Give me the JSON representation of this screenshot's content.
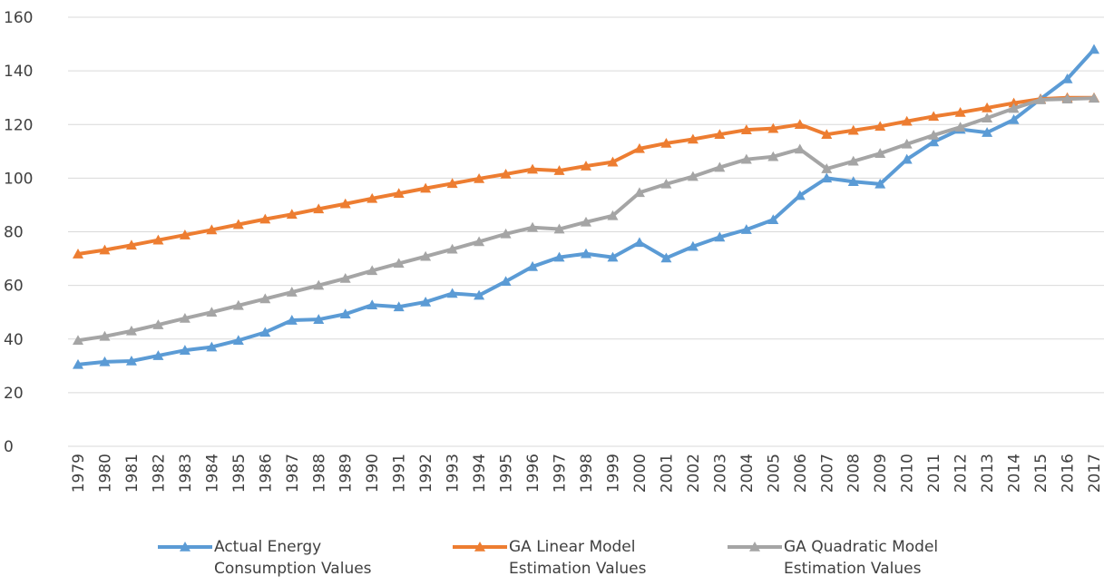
{
  "chart_data": {
    "type": "line",
    "categories": [
      "1979",
      "1980",
      "1981",
      "1982",
      "1983",
      "1984",
      "1985",
      "1986",
      "1987",
      "1988",
      "1989",
      "1990",
      "1991",
      "1992",
      "1993",
      "1994",
      "1995",
      "1996",
      "1997",
      "1998",
      "1999",
      "2000",
      "2001",
      "2002",
      "2003",
      "2004",
      "2005",
      "2006",
      "2007",
      "2008",
      "2009",
      "2010",
      "2011",
      "2012",
      "2013",
      "2014",
      "2015",
      "2016",
      "2017"
    ],
    "series": [
      {
        "name": "Actual Energy Consumption Values",
        "color": "#5b9bd5",
        "values": [
          30.5,
          31.5,
          31.8,
          33.8,
          35.8,
          37,
          39.5,
          42.5,
          47,
          47.3,
          49.3,
          52.7,
          52,
          53.8,
          57,
          56.3,
          61.5,
          67,
          70.5,
          71.8,
          70.5,
          76,
          70.2,
          74.5,
          78,
          80.8,
          84.5,
          93.5,
          100,
          98.7,
          97.8,
          107,
          113.5,
          118.2,
          117,
          121.8,
          129.5,
          137,
          148
        ]
      },
      {
        "name": "GA Linear Model Estimation Values",
        "color": "#ed7d31",
        "values": [
          71.7,
          73.2,
          75,
          76.9,
          78.8,
          80.7,
          82.7,
          84.7,
          86.5,
          88.5,
          90.4,
          92.4,
          94.3,
          96.2,
          98,
          99.8,
          101.5,
          103.3,
          102.8,
          104.5,
          106,
          111,
          113,
          114.5,
          116.3,
          118,
          118.5,
          120,
          116.3,
          117.8,
          119.3,
          121.2,
          123,
          124.5,
          126.2,
          128,
          129.5,
          130,
          130
        ]
      },
      {
        "name": "GA Quadratic Model Estimation Values",
        "color": "#a5a5a5",
        "values": [
          39.5,
          41,
          43,
          45.3,
          47.7,
          50,
          52.5,
          55,
          57.5,
          60,
          62.6,
          65.5,
          68.2,
          70.8,
          73.5,
          76.3,
          79.2,
          81.6,
          81,
          83.6,
          86,
          94.6,
          97.8,
          100.6,
          104,
          107,
          108,
          110.8,
          103.5,
          106.3,
          109.2,
          112.7,
          116,
          119,
          122.4,
          126,
          129.2,
          129.5,
          129.8
        ]
      }
    ],
    "ylim": [
      0,
      160
    ],
    "yticks": [
      0,
      20,
      40,
      60,
      80,
      100,
      120,
      140,
      160
    ],
    "grid": true,
    "legend": "bottom"
  }
}
